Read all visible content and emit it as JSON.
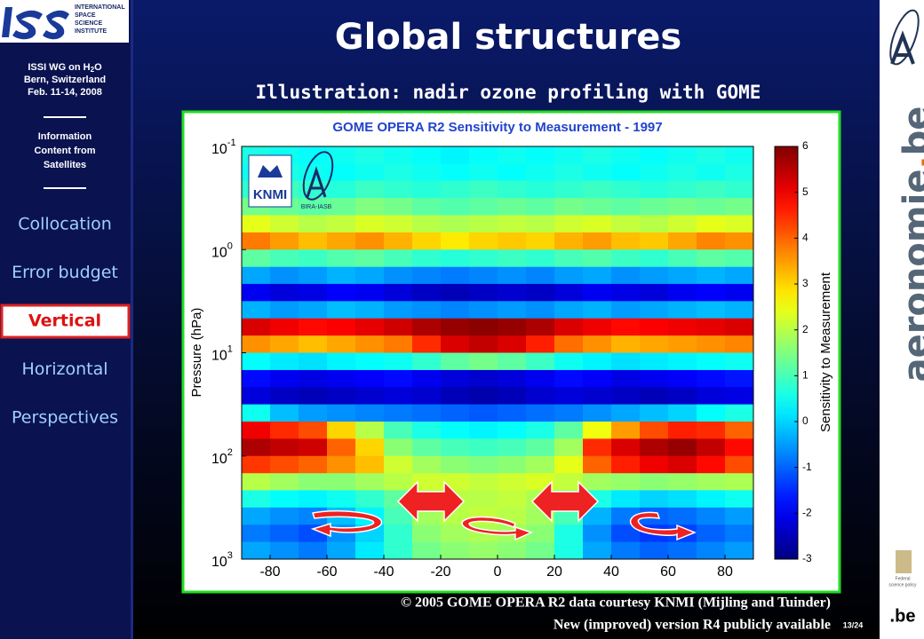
{
  "sidebar": {
    "logo": [
      "INTERNATIONAL",
      "SPACE",
      "SCIENCE",
      "INSTITUTE"
    ],
    "workshop": [
      "ISSI WG on H",
      "2",
      "O"
    ],
    "place": "Bern, Switzerland",
    "date": "Feb. 11-14, 2008",
    "topic": [
      "Information",
      "Content from",
      "Satellites"
    ],
    "nav": [
      "Collocation",
      "Error budget",
      "Vertical",
      "Horizontal",
      "Perspectives"
    ],
    "active": 2
  },
  "header": {
    "title": "Global structures",
    "subtitle": "Illustration: nadir ozone profiling with GOME"
  },
  "footer": {
    "credit": "© 2005 GOME OPERA R2 data courtesy KNMI (Mijling and Tuinder)",
    "note": "New (improved) version R4 publicly available",
    "page": "13/24"
  },
  "brand": {
    "site": [
      "aeronomie",
      ".",
      "be"
    ],
    "knmi": "KNMI",
    "bira": "BIRA-IASB",
    "be": ".be",
    "policy": [
      "Federal",
      "science policy"
    ]
  },
  "chart_data": {
    "type": "heatmap",
    "title": "GOME OPERA R2 Sensitivity to Measurement - 1997",
    "ylabel": "Pressure (hPa)",
    "colorbar_label": "Sensitivity to Measurement",
    "colormap": "jet",
    "ylog": true,
    "xlim": [
      -90,
      90
    ],
    "xticks": [
      -80,
      -60,
      -40,
      -20,
      0,
      20,
      40,
      60,
      80
    ],
    "ylim": [
      0.1,
      1000
    ],
    "yticks": [
      {
        "value": 0.1,
        "label": "10",
        "exponent": "-1"
      },
      {
        "value": 1,
        "label": "10",
        "exponent": "0"
      },
      {
        "value": 10,
        "label": "10",
        "exponent": "1"
      },
      {
        "value": 100,
        "label": "10",
        "exponent": "2"
      },
      {
        "value": 1000,
        "label": "10",
        "exponent": "3"
      }
    ],
    "clim": [
      -3,
      6
    ],
    "cticks": [
      -3,
      -2,
      -1,
      0,
      1,
      2,
      3,
      4,
      5,
      6
    ],
    "xbins": [
      -90,
      -80,
      -70,
      -60,
      -50,
      -40,
      -30,
      -20,
      -10,
      0,
      10,
      20,
      30,
      40,
      50,
      60,
      70,
      80,
      90
    ],
    "ybins": [
      0.1,
      0.147,
      0.215,
      0.316,
      0.464,
      0.681,
      1,
      1.47,
      2.15,
      3.16,
      4.64,
      6.81,
      10,
      14.7,
      21.5,
      31.6,
      46.4,
      68.1,
      100,
      147,
      215,
      316,
      464,
      681,
      1000
    ],
    "z": [
      [
        0.6,
        0.5,
        0.4,
        0.5,
        0.6,
        0.5,
        0.4,
        0.3,
        0.4,
        0.5,
        0.4,
        0.5,
        0.6,
        0.5,
        0.4,
        0.5,
        0.6,
        0.5
      ],
      [
        0.5,
        0.6,
        0.5,
        0.4,
        0.5,
        0.6,
        0.5,
        0.4,
        0.5,
        0.4,
        0.5,
        0.6,
        0.5,
        0.4,
        0.5,
        0.6,
        0.5,
        0.6
      ],
      [
        0.8,
        0.9,
        0.8,
        0.7,
        0.9,
        0.8,
        0.7,
        0.8,
        0.9,
        0.8,
        0.7,
        0.8,
        0.9,
        0.8,
        0.7,
        0.8,
        0.9,
        0.8
      ],
      [
        1.4,
        1.3,
        1.2,
        1.3,
        1.5,
        1.4,
        1.2,
        1.1,
        1.2,
        1.3,
        1.2,
        1.4,
        1.3,
        1.2,
        1.3,
        1.4,
        1.3,
        1.4
      ],
      [
        2.4,
        2.2,
        2.0,
        2.1,
        2.3,
        2.2,
        2.0,
        1.9,
        2.0,
        2.1,
        2.0,
        2.2,
        2.3,
        2.1,
        2.0,
        2.2,
        2.4,
        2.3
      ],
      [
        3.8,
        3.5,
        3.2,
        3.4,
        3.6,
        3.3,
        3.0,
        2.8,
        3.0,
        3.1,
        3.0,
        3.3,
        3.5,
        3.2,
        3.1,
        3.4,
        3.7,
        3.6
      ],
      [
        1.2,
        1.0,
        0.9,
        1.1,
        1.2,
        1.0,
        0.8,
        0.7,
        0.8,
        0.9,
        0.8,
        1.0,
        1.1,
        0.9,
        0.8,
        1.0,
        1.2,
        1.1
      ],
      [
        -0.4,
        -0.6,
        -0.5,
        -0.3,
        -0.4,
        -0.6,
        -0.7,
        -0.8,
        -0.7,
        -0.6,
        -0.7,
        -0.5,
        -0.4,
        -0.6,
        -0.5,
        -0.4,
        -0.3,
        -0.4
      ],
      [
        -2.0,
        -2.2,
        -2.1,
        -1.9,
        -2.0,
        -2.2,
        -2.4,
        -2.5,
        -2.4,
        -2.3,
        -2.4,
        -2.2,
        -2.0,
        -2.1,
        -2.2,
        -2.0,
        -1.9,
        -2.0
      ],
      [
        -0.3,
        -0.5,
        -0.4,
        -0.2,
        -0.3,
        -0.5,
        -0.6,
        -0.7,
        -0.6,
        -0.5,
        -0.6,
        -0.4,
        -0.3,
        -0.5,
        -0.4,
        -0.3,
        -0.2,
        -0.3
      ],
      [
        5.2,
        5.0,
        4.8,
        4.9,
        5.1,
        5.3,
        5.6,
        5.8,
        5.9,
        5.8,
        5.6,
        5.2,
        5.0,
        4.8,
        4.9,
        5.0,
        5.1,
        5.2
      ],
      [
        3.6,
        3.4,
        3.2,
        3.4,
        3.6,
        3.8,
        4.5,
        5.2,
        5.4,
        5.2,
        4.6,
        3.9,
        3.6,
        3.3,
        3.4,
        3.5,
        3.6,
        3.7
      ],
      [
        0.4,
        0.2,
        0.1,
        0.3,
        0.4,
        0.5,
        0.8,
        1.2,
        1.4,
        1.2,
        0.9,
        0.5,
        0.3,
        0.1,
        0.2,
        0.3,
        0.4,
        0.5
      ],
      [
        -1.8,
        -2.0,
        -2.1,
        -2.0,
        -1.9,
        -1.8,
        -2.0,
        -2.2,
        -2.3,
        -2.2,
        -2.0,
        -1.8,
        -1.9,
        -2.1,
        -2.0,
        -1.9,
        -1.8,
        -1.7
      ],
      [
        -2.2,
        -2.4,
        -2.5,
        -2.4,
        -2.3,
        -2.2,
        -2.3,
        -2.5,
        -2.6,
        -2.5,
        -2.3,
        -2.2,
        -2.3,
        -2.4,
        -2.5,
        -2.4,
        -2.2,
        -2.1
      ],
      [
        0.5,
        -0.2,
        -0.5,
        -0.6,
        -0.7,
        -0.8,
        -0.9,
        -1.0,
        -1.1,
        -1.0,
        -0.9,
        -0.8,
        -0.6,
        -0.4,
        -0.2,
        0.0,
        0.4,
        0.6
      ],
      [
        5.0,
        4.5,
        4.2,
        3.0,
        2.0,
        1.0,
        0.6,
        0.4,
        0.3,
        0.4,
        0.6,
        1.2,
        2.5,
        3.5,
        4.2,
        4.6,
        4.5,
        4.0
      ],
      [
        5.6,
        5.4,
        5.3,
        4.0,
        3.0,
        1.6,
        1.2,
        1.0,
        0.9,
        1.0,
        1.2,
        1.8,
        4.5,
        5.2,
        5.6,
        5.8,
        5.4,
        4.8
      ],
      [
        4.4,
        4.2,
        4.0,
        3.6,
        3.2,
        2.2,
        1.8,
        1.6,
        1.5,
        1.6,
        1.8,
        2.4,
        4.0,
        4.6,
        5.0,
        5.2,
        4.8,
        4.2
      ],
      [
        2.0,
        1.8,
        1.6,
        1.6,
        1.8,
        2.0,
        2.2,
        2.2,
        2.1,
        2.2,
        2.3,
        2.1,
        1.8,
        1.7,
        1.6,
        1.7,
        1.8,
        1.9
      ],
      [
        0.6,
        0.4,
        0.3,
        0.5,
        0.8,
        1.2,
        1.8,
        2.0,
        2.0,
        2.1,
        1.9,
        1.4,
        0.6,
        0.2,
        0.0,
        0.1,
        0.3,
        0.5
      ],
      [
        -0.4,
        -0.6,
        -0.7,
        -0.2,
        0.3,
        1.0,
        1.8,
        2.0,
        2.1,
        2.0,
        1.8,
        1.0,
        -0.3,
        -0.8,
        -1.0,
        -0.9,
        -0.7,
        -0.5
      ],
      [
        -0.8,
        -1.0,
        -1.2,
        -0.6,
        0.0,
        0.8,
        1.6,
        1.8,
        1.9,
        1.8,
        1.6,
        0.6,
        -0.6,
        -1.2,
        -1.4,
        -1.3,
        -1.0,
        -0.8
      ],
      [
        -0.4,
        -0.6,
        -0.8,
        -0.4,
        0.2,
        0.8,
        1.4,
        1.6,
        1.7,
        1.6,
        1.4,
        0.6,
        -0.4,
        -0.8,
        -1.0,
        -0.9,
        -0.7,
        -0.5
      ]
    ]
  }
}
